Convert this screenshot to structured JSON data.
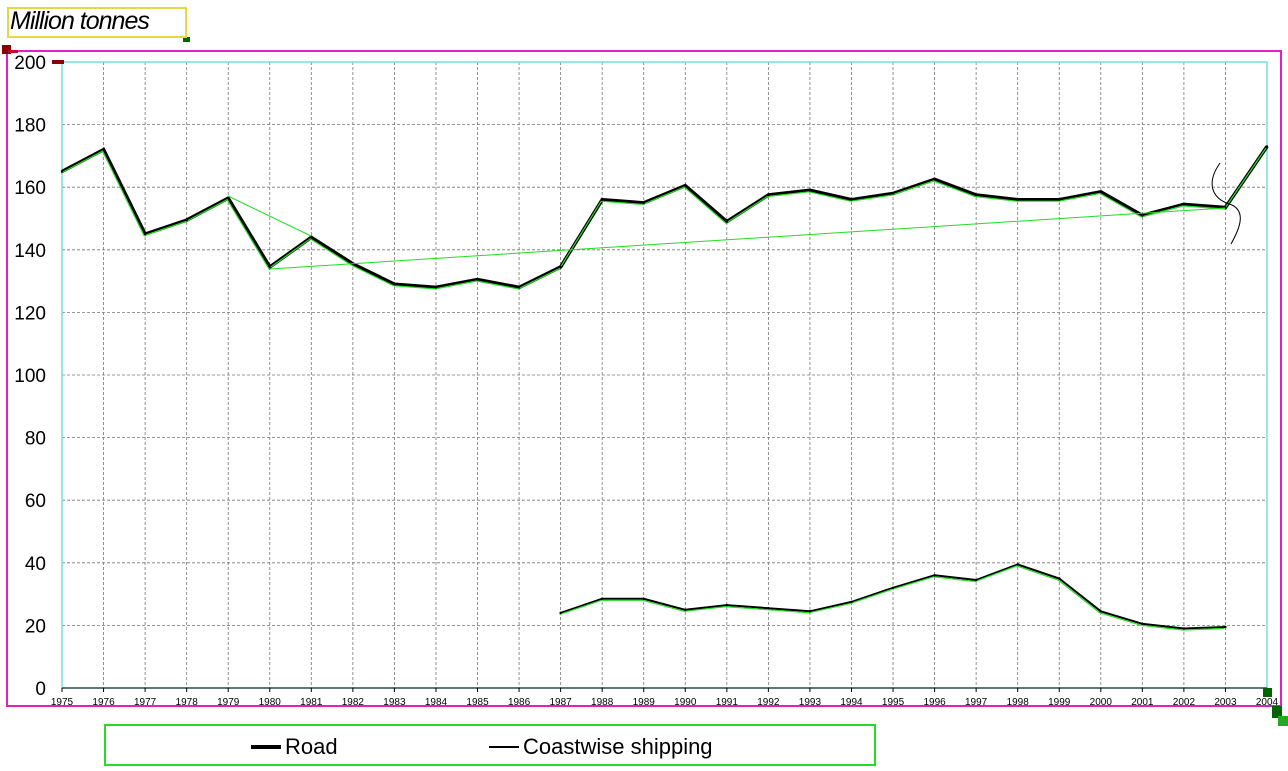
{
  "title": "Million tonnes",
  "legend": {
    "road_label": "Road",
    "coastwise_label": "Coastwise shipping"
  },
  "colors": {
    "road": "#000000",
    "coastwise": "#000000",
    "trace_overlay": "#22dd22",
    "plot_border": "#70e0e0",
    "chart_border": "#e020c0",
    "grid": "#777777"
  },
  "chart_data": {
    "type": "line",
    "title": "Million tonnes",
    "xlabel": "",
    "ylabel": "",
    "ylim": [
      0,
      200
    ],
    "yticks": [
      0,
      20,
      40,
      60,
      80,
      100,
      120,
      140,
      160,
      180,
      200
    ],
    "grid": true,
    "legend_position": "bottom",
    "x": [
      "1975",
      "1976",
      "1977",
      "1978",
      "1979",
      "1980",
      "1981",
      "1982",
      "1983",
      "1984",
      "1985",
      "1986",
      "1987",
      "1988",
      "1989",
      "1990",
      "1991",
      "1992",
      "1993",
      "1994",
      "1995",
      "1996",
      "1997",
      "1998",
      "1999",
      "2000",
      "2001",
      "2002",
      "2003",
      "2004"
    ],
    "series": [
      {
        "name": "Road",
        "values": [
          165,
          172,
          145,
          149.5,
          156.5,
          134.5,
          144,
          135.5,
          129,
          128,
          130.5,
          128,
          134.5,
          156,
          155,
          160.5,
          149,
          157.5,
          159,
          156,
          158,
          162.5,
          157.5,
          156,
          156,
          158.5,
          151,
          154.5,
          153.5,
          173
        ]
      },
      {
        "name": "Coastwise shipping",
        "values": [
          null,
          null,
          null,
          null,
          null,
          null,
          null,
          null,
          null,
          null,
          null,
          null,
          24,
          28.5,
          28.5,
          25,
          26.5,
          25.5,
          24.5,
          27.5,
          32,
          36,
          34.5,
          39.5,
          35,
          24.5,
          20.5,
          19,
          19.5,
          null
        ]
      }
    ]
  }
}
